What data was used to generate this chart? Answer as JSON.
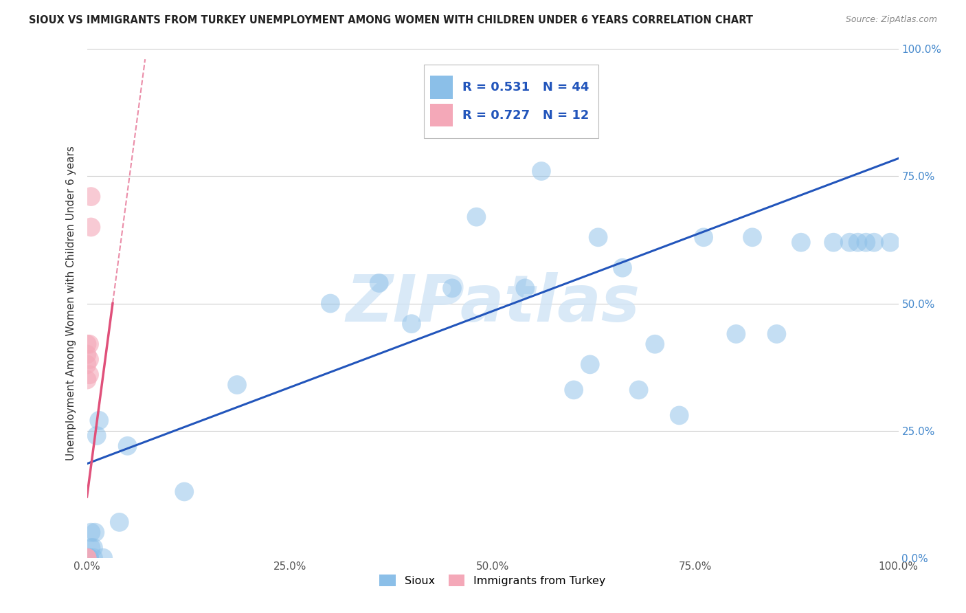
{
  "title": "SIOUX VS IMMIGRANTS FROM TURKEY UNEMPLOYMENT AMONG WOMEN WITH CHILDREN UNDER 6 YEARS CORRELATION CHART",
  "source": "Source: ZipAtlas.com",
  "ylabel": "Unemployment Among Women with Children Under 6 years",
  "sioux_R": "0.531",
  "sioux_N": "44",
  "turkey_R": "0.727",
  "turkey_N": "12",
  "sioux_color": "#8bbfe8",
  "turkey_color": "#f4a8b8",
  "sioux_line_color": "#2255bb",
  "turkey_line_color": "#e0507a",
  "sioux_line_intercept": 0.185,
  "sioux_line_slope": 0.6,
  "turkey_line_intercept": 0.12,
  "turkey_line_slope": 12.0,
  "sioux_x": [
    0.0,
    0.0,
    0.0,
    0.0,
    0.003,
    0.003,
    0.003,
    0.005,
    0.005,
    0.008,
    0.008,
    0.01,
    0.012,
    0.015,
    0.02,
    0.04,
    0.05,
    0.12,
    0.185,
    0.3,
    0.36,
    0.4,
    0.45,
    0.48,
    0.54,
    0.56,
    0.6,
    0.63,
    0.66,
    0.68,
    0.73,
    0.76,
    0.82,
    0.85,
    0.92,
    0.95,
    0.96,
    0.97,
    0.99,
    0.62,
    0.7,
    0.8,
    0.88,
    0.94
  ],
  "sioux_y": [
    0.0,
    0.0,
    0.0,
    0.0,
    0.0,
    0.0,
    0.0,
    0.02,
    0.05,
    0.0,
    0.02,
    0.05,
    0.24,
    0.27,
    0.0,
    0.07,
    0.22,
    0.13,
    0.34,
    0.5,
    0.54,
    0.46,
    0.53,
    0.67,
    0.53,
    0.76,
    0.33,
    0.63,
    0.57,
    0.33,
    0.28,
    0.63,
    0.63,
    0.44,
    0.62,
    0.62,
    0.62,
    0.62,
    0.62,
    0.38,
    0.42,
    0.44,
    0.62,
    0.62
  ],
  "turkey_x": [
    0.0,
    0.0,
    0.0,
    0.0,
    0.0,
    0.0,
    0.0,
    0.003,
    0.003,
    0.003,
    0.005,
    0.005
  ],
  "turkey_y": [
    0.0,
    0.0,
    0.0,
    0.35,
    0.38,
    0.4,
    0.42,
    0.36,
    0.39,
    0.42,
    0.65,
    0.71
  ],
  "xlim": [
    0.0,
    1.0
  ],
  "ylim": [
    0.0,
    1.0
  ],
  "xticks": [
    0.0,
    0.25,
    0.5,
    0.75,
    1.0
  ],
  "xtick_labels": [
    "0.0%",
    "25.0%",
    "50.0%",
    "75.0%",
    "100.0%"
  ],
  "ytick_labels": [
    "0.0%",
    "25.0%",
    "50.0%",
    "75.0%",
    "100.0%"
  ],
  "grid_lines": [
    0.25,
    0.5,
    0.75,
    1.0
  ],
  "background_color": "#ffffff",
  "watermark_text": "ZIPatlas",
  "watermark_color": "#d0e4f5"
}
